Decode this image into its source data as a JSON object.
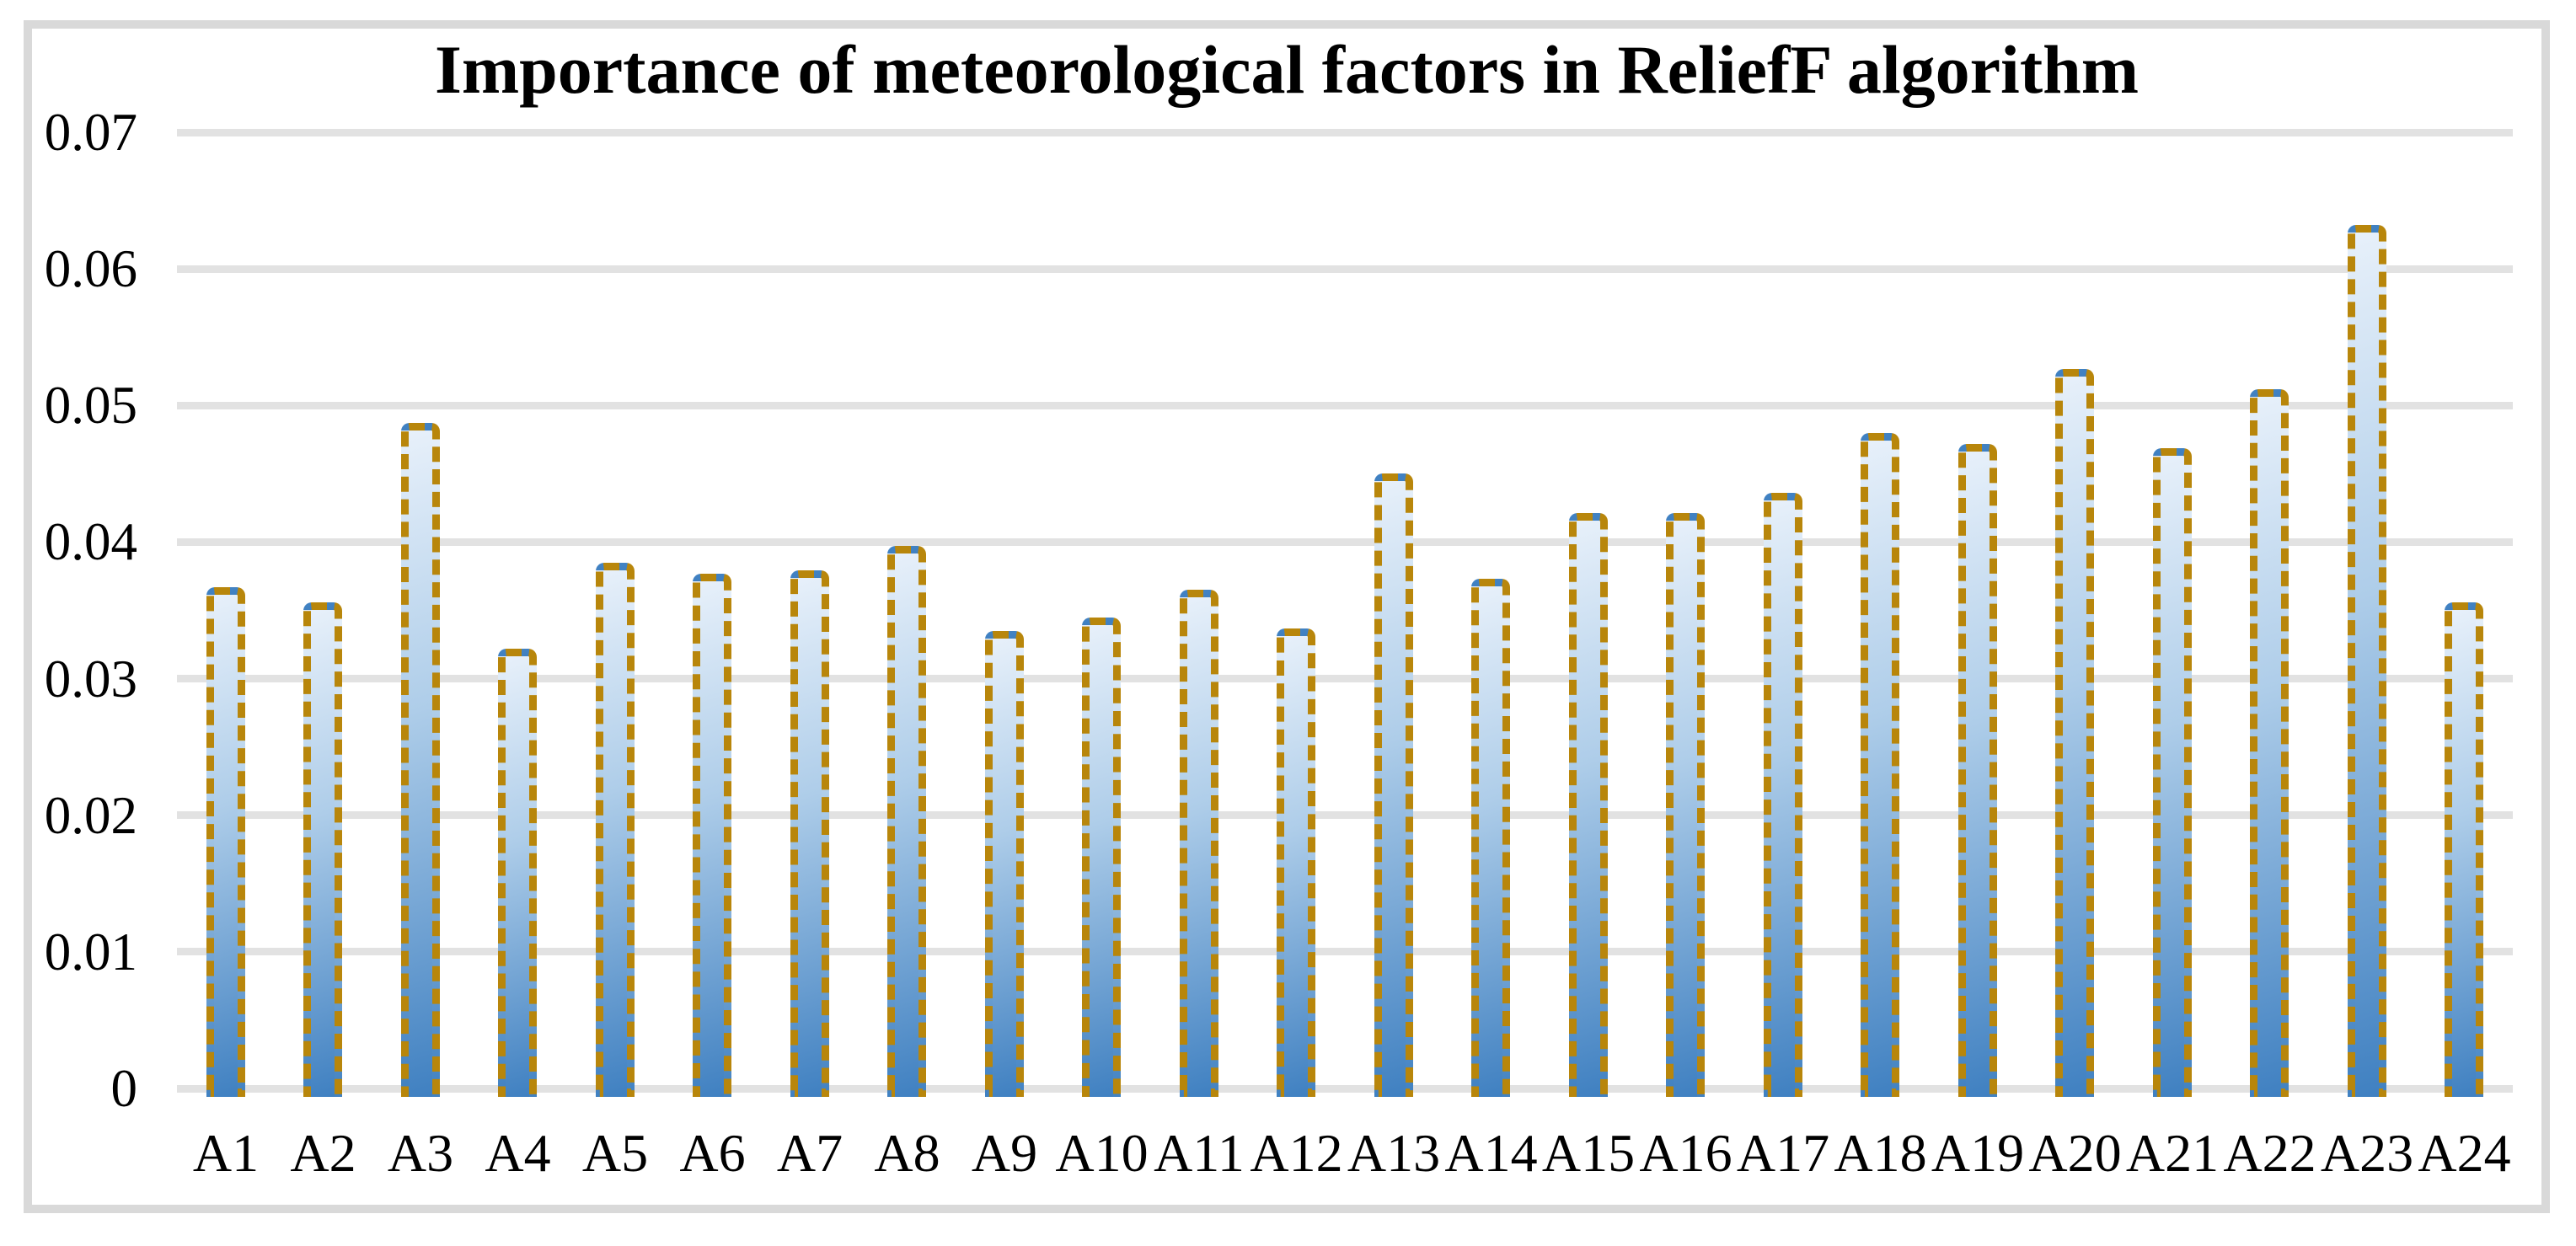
{
  "title": "Importance of meteorological factors in ReliefF algorithm",
  "chart_data": {
    "type": "bar",
    "title": "Importance of meteorological factors in ReliefF algorithm",
    "categories": [
      "A1",
      "A2",
      "A3",
      "A4",
      "A5",
      "A6",
      "A7",
      "A8",
      "A9",
      "A10",
      "A11",
      "A12",
      "A13",
      "A14",
      "A15",
      "A16",
      "A17",
      "A18",
      "A19",
      "A20",
      "A21",
      "A22",
      "A23",
      "A24"
    ],
    "values": [
      0.0367,
      0.0356,
      0.0487,
      0.0322,
      0.0385,
      0.0377,
      0.0379,
      0.0397,
      0.0335,
      0.0345,
      0.0365,
      0.0337,
      0.045,
      0.0373,
      0.0421,
      0.0421,
      0.0436,
      0.048,
      0.0472,
      0.0527,
      0.0469,
      0.0512,
      0.0632,
      0.0356
    ],
    "xlabel": "",
    "ylabel": "",
    "ylim": [
      0,
      0.07
    ],
    "ytick_step": 0.01,
    "ytick_labels": [
      "0",
      "0.01",
      "0.02",
      "0.03",
      "0.04",
      "0.05",
      "0.06",
      "0.07"
    ],
    "grid": true,
    "legend": "none",
    "series_name": "",
    "colors": {
      "bar_fill_light": "#e7f0fa",
      "bar_fill_mid": "#aecde9",
      "bar_fill_dark": "#3f80c1",
      "bar_border": "#b8860b",
      "gridline": "#e2e2e2",
      "frame_border": "#d9d9d9",
      "text": "#000000",
      "background": "#ffffff"
    }
  }
}
